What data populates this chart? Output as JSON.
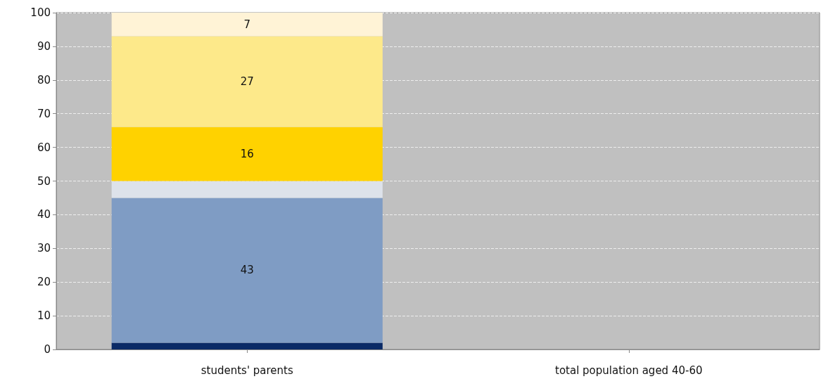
{
  "chart_data": {
    "type": "bar",
    "stacked": true,
    "categories": [
      "students' parents",
      "total population aged 40-60"
    ],
    "series": [
      {
        "color": "#0a2a66",
        "values": [
          2,
          null
        ],
        "value_labels": [
          null,
          null
        ]
      },
      {
        "color": "#7f9cc4",
        "values": [
          43,
          null
        ],
        "value_labels": [
          "43",
          null
        ]
      },
      {
        "color": "#dde2ea",
        "values": [
          5,
          null
        ],
        "value_labels": [
          null,
          null
        ]
      },
      {
        "color": "#ffd200",
        "values": [
          16,
          null
        ],
        "value_labels": [
          "16",
          null
        ]
      },
      {
        "color": "#fde98a",
        "values": [
          27,
          null
        ],
        "value_labels": [
          "27",
          null
        ]
      },
      {
        "color": "#fff3d6",
        "values": [
          7,
          null
        ],
        "value_labels": [
          "7",
          null
        ]
      }
    ],
    "ylim": [
      0,
      100
    ],
    "yticks": [
      0,
      10,
      20,
      30,
      40,
      50,
      60,
      70,
      80,
      90,
      100
    ],
    "grid": "y"
  }
}
